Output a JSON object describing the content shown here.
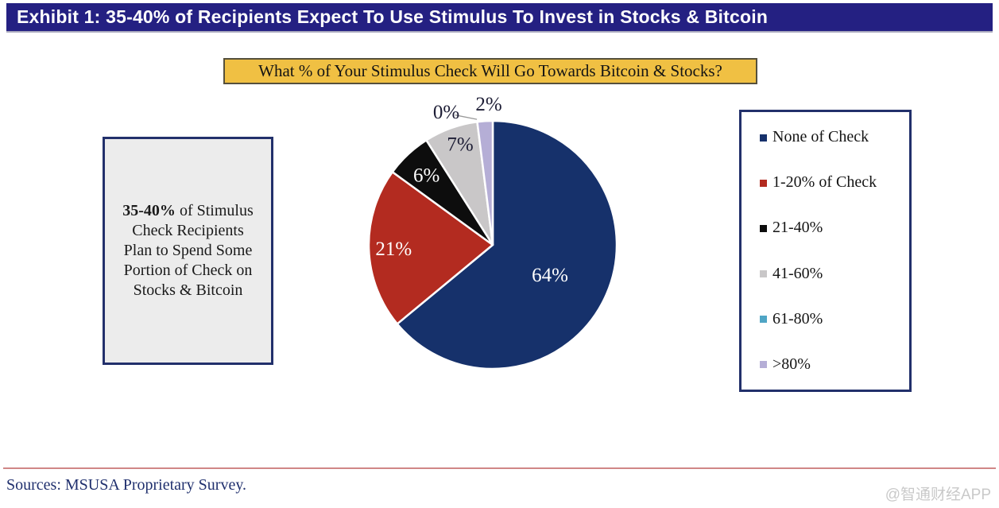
{
  "header": {
    "title": "Exhibit 1: 35-40% of Recipients Expect To Use Stimulus To Invest in Stocks & Bitcoin"
  },
  "callout": {
    "bold_prefix": "35-40%",
    "lines": [
      "35-40% of Stimulus",
      "Check Recipients",
      "Plan to Spend Some",
      "Portion of Check on",
      "Stocks & Bitcoin"
    ]
  },
  "chart_data": {
    "type": "pie",
    "title": "What % of Your Stimulus Check Will Go Towards Bitcoin & Stocks?",
    "start_angle_deg": 0,
    "direction": "clockwise",
    "legend_position": "right",
    "slices": [
      {
        "label": "None of Check",
        "value": 64,
        "value_label": "64%",
        "color": "#16316b",
        "label_color": "#ffffff"
      },
      {
        "label": "1-20% of Check",
        "value": 21,
        "value_label": "21%",
        "color": "#b32b20",
        "label_color": "#ffffff"
      },
      {
        "label": "21-40%",
        "value": 6,
        "value_label": "6%",
        "color": "#0d0d0d",
        "label_color": "#ffffff"
      },
      {
        "label": "41-60%",
        "value": 7,
        "value_label": "7%",
        "color": "#c9c7c8",
        "label_color": "#1d1d35"
      },
      {
        "label": "61-80%",
        "value": 0,
        "value_label": "0%",
        "color": "#4fa5c5",
        "label_color": "#1d1d35"
      },
      {
        "label": ">80%",
        "value": 2,
        "value_label": "2%",
        "color": "#b5aed6",
        "label_color": "#1d1d35"
      }
    ]
  },
  "footer": {
    "source": "Sources: MSUSA Proprietary Survey.",
    "watermark": "@智通财经APP"
  }
}
